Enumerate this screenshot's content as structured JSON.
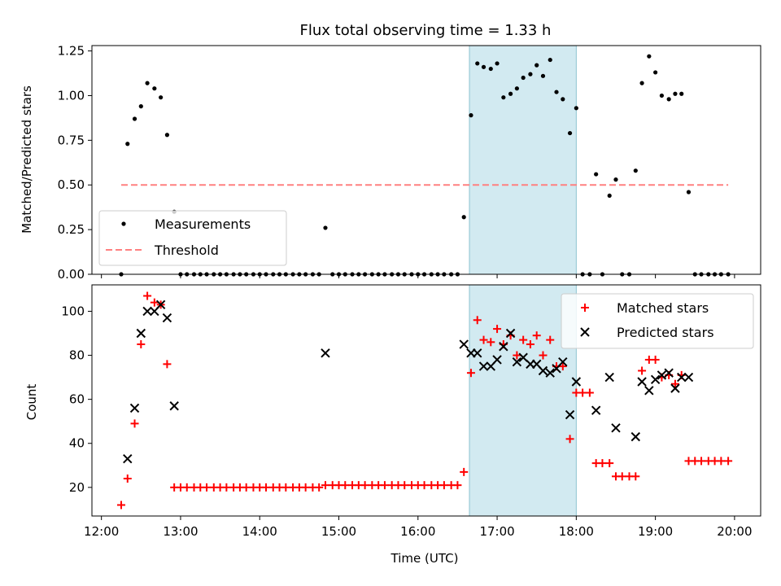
{
  "chart_data": [
    {
      "type": "scatter",
      "title": "Flux total observing time = 1.33 h",
      "xlabel": "",
      "ylabel": "Matched/Predicted stars",
      "xlim": [
        11.88,
        20.33
      ],
      "ylim": [
        0,
        1.28
      ],
      "yticks": [
        {
          "value": 0,
          "label": "0.00"
        },
        {
          "value": 0.25,
          "label": "0.25"
        },
        {
          "value": 0.5,
          "label": "0.50"
        },
        {
          "value": 0.75,
          "label": "0.75"
        },
        {
          "value": 1.0,
          "label": "1.00"
        },
        {
          "value": 1.25,
          "label": "1.25"
        }
      ],
      "highlight_span": [
        16.65,
        18.0
      ],
      "highlight_color": "#add8e6",
      "legend": {
        "position": "bottom-left",
        "entries": [
          "Measurements",
          "Threshold"
        ]
      },
      "series": [
        {
          "name": "Measurements",
          "color": "#000000",
          "marker": "dot",
          "x": [
            12.25,
            12.33,
            12.42,
            12.5,
            12.58,
            12.67,
            12.75,
            12.83,
            12.92,
            13.0,
            13.08,
            13.17,
            13.25,
            13.33,
            13.42,
            13.5,
            13.58,
            13.67,
            13.75,
            13.83,
            13.92,
            14.0,
            14.08,
            14.17,
            14.25,
            14.33,
            14.42,
            14.5,
            14.58,
            14.67,
            14.75,
            14.83,
            14.92,
            15.0,
            15.08,
            15.17,
            15.25,
            15.33,
            15.42,
            15.5,
            15.58,
            15.67,
            15.75,
            15.83,
            15.92,
            16.0,
            16.08,
            16.17,
            16.25,
            16.33,
            16.42,
            16.5,
            16.58,
            16.67,
            16.75,
            16.83,
            16.92,
            17.0,
            17.08,
            17.17,
            17.25,
            17.33,
            17.42,
            17.5,
            17.58,
            17.67,
            17.75,
            17.83,
            17.92,
            18.0,
            18.08,
            18.17,
            18.25,
            18.33,
            18.42,
            18.5,
            18.58,
            18.67,
            18.75,
            18.83,
            18.92,
            19.0,
            19.08,
            19.17,
            19.25,
            19.33,
            19.42,
            19.5,
            19.58,
            19.67,
            19.75,
            19.83,
            19.92
          ],
          "y": [
            0.0,
            0.73,
            0.87,
            0.94,
            1.07,
            1.04,
            0.99,
            0.78,
            0.35,
            0.0,
            0.0,
            0.0,
            0.0,
            0.0,
            0.0,
            0.0,
            0.0,
            0.0,
            0.0,
            0.0,
            0.0,
            0.0,
            0.0,
            0.0,
            0.0,
            0.0,
            0.0,
            0.0,
            0.0,
            0.0,
            0.0,
            0.26,
            0.0,
            0.0,
            0.0,
            0.0,
            0.0,
            0.0,
            0.0,
            0.0,
            0.0,
            0.0,
            0.0,
            0.0,
            0.0,
            0.0,
            0.0,
            0.0,
            0.0,
            0.0,
            0.0,
            0.0,
            0.32,
            0.89,
            1.18,
            1.16,
            1.15,
            1.18,
            0.99,
            1.01,
            1.04,
            1.1,
            1.12,
            1.17,
            1.11,
            1.2,
            1.02,
            0.98,
            0.79,
            0.93,
            0.0,
            0.0,
            0.56,
            0.0,
            0.44,
            0.53,
            0.0,
            0.0,
            0.58,
            1.07,
            1.22,
            1.13,
            1.0,
            0.98,
            1.01,
            1.01,
            0.46,
            0.0,
            0.0,
            0.0,
            0.0,
            0.0,
            0.0
          ]
        },
        {
          "name": "Threshold",
          "color": "#ff8080",
          "style": "dashed",
          "x": [
            12.25,
            19.92
          ],
          "y": [
            0.5,
            0.5
          ]
        }
      ]
    },
    {
      "type": "scatter",
      "title": "",
      "xlabel": "Time (UTC)",
      "ylabel": "Count",
      "xlim": [
        11.88,
        20.33
      ],
      "ylim": [
        7,
        112
      ],
      "yticks": [
        {
          "value": 20,
          "label": "20"
        },
        {
          "value": 40,
          "label": "40"
        },
        {
          "value": 60,
          "label": "60"
        },
        {
          "value": 80,
          "label": "80"
        },
        {
          "value": 100,
          "label": "100"
        }
      ],
      "xticks": [
        {
          "value": 12,
          "label": "12:00"
        },
        {
          "value": 13,
          "label": "13:00"
        },
        {
          "value": 14,
          "label": "14:00"
        },
        {
          "value": 15,
          "label": "15:00"
        },
        {
          "value": 16,
          "label": "16:00"
        },
        {
          "value": 17,
          "label": "17:00"
        },
        {
          "value": 18,
          "label": "18:00"
        },
        {
          "value": 19,
          "label": "19:00"
        },
        {
          "value": 20,
          "label": "20:00"
        }
      ],
      "highlight_span": [
        16.65,
        18.0
      ],
      "highlight_color": "#add8e6",
      "legend": {
        "position": "top-right",
        "entries": [
          "Matched stars",
          "Predicted stars"
        ]
      },
      "series": [
        {
          "name": "Matched stars",
          "color": "#ff0000",
          "marker": "plus",
          "x": [
            12.25,
            12.33,
            12.42,
            12.5,
            12.58,
            12.67,
            12.75,
            12.83,
            12.92,
            13.0,
            13.08,
            13.17,
            13.25,
            13.33,
            13.42,
            13.5,
            13.58,
            13.67,
            13.75,
            13.83,
            13.92,
            14.0,
            14.08,
            14.17,
            14.25,
            14.33,
            14.42,
            14.5,
            14.58,
            14.67,
            14.75,
            14.83,
            14.92,
            15.0,
            15.08,
            15.17,
            15.25,
            15.33,
            15.42,
            15.5,
            15.58,
            15.67,
            15.75,
            15.83,
            15.92,
            16.0,
            16.08,
            16.17,
            16.25,
            16.33,
            16.42,
            16.5,
            16.58,
            16.67,
            16.75,
            16.83,
            16.92,
            17.0,
            17.08,
            17.17,
            17.25,
            17.33,
            17.42,
            17.5,
            17.58,
            17.67,
            17.75,
            17.83,
            17.92,
            18.0,
            18.08,
            18.17,
            18.25,
            18.33,
            18.42,
            18.5,
            18.58,
            18.67,
            18.75,
            18.83,
            18.92,
            19.0,
            19.08,
            19.17,
            19.25,
            19.33,
            19.42,
            19.5,
            19.58,
            19.67,
            19.75,
            19.83,
            19.92
          ],
          "y": [
            12,
            24,
            49,
            85,
            107,
            104,
            103,
            76,
            20,
            20,
            20,
            20,
            20,
            20,
            20,
            20,
            20,
            20,
            20,
            20,
            20,
            20,
            20,
            20,
            20,
            20,
            20,
            20,
            20,
            20,
            20,
            21,
            21,
            21,
            21,
            21,
            21,
            21,
            21,
            21,
            21,
            21,
            21,
            21,
            21,
            21,
            21,
            21,
            21,
            21,
            21,
            21,
            27,
            72,
            96,
            87,
            86,
            92,
            85,
            89,
            80,
            87,
            85,
            89,
            80,
            87,
            75,
            75,
            42,
            63,
            63,
            63,
            31,
            31,
            31,
            25,
            25,
            25,
            25,
            73,
            78,
            78,
            70,
            71,
            67,
            71,
            32,
            32,
            32,
            32,
            32,
            32,
            32
          ]
        },
        {
          "name": "Predicted stars",
          "color": "#000000",
          "marker": "x",
          "x": [
            12.33,
            12.42,
            12.5,
            12.58,
            12.67,
            12.75,
            12.83,
            12.92,
            14.83,
            16.58,
            16.67,
            16.75,
            16.83,
            16.92,
            17.0,
            17.08,
            17.17,
            17.25,
            17.33,
            17.42,
            17.5,
            17.58,
            17.67,
            17.75,
            17.83,
            17.92,
            18.0,
            18.25,
            18.42,
            18.5,
            18.75,
            18.83,
            18.92,
            19.0,
            19.08,
            19.17,
            19.25,
            19.33,
            19.42
          ],
          "y": [
            33,
            56,
            90,
            100,
            100,
            103,
            97,
            57,
            81,
            85,
            81,
            81,
            75,
            75,
            78,
            84,
            90,
            77,
            79,
            76,
            76,
            73,
            72,
            74,
            77,
            53,
            68,
            55,
            70,
            47,
            43,
            68,
            64,
            69,
            71,
            72,
            65,
            70,
            70
          ]
        }
      ]
    }
  ]
}
